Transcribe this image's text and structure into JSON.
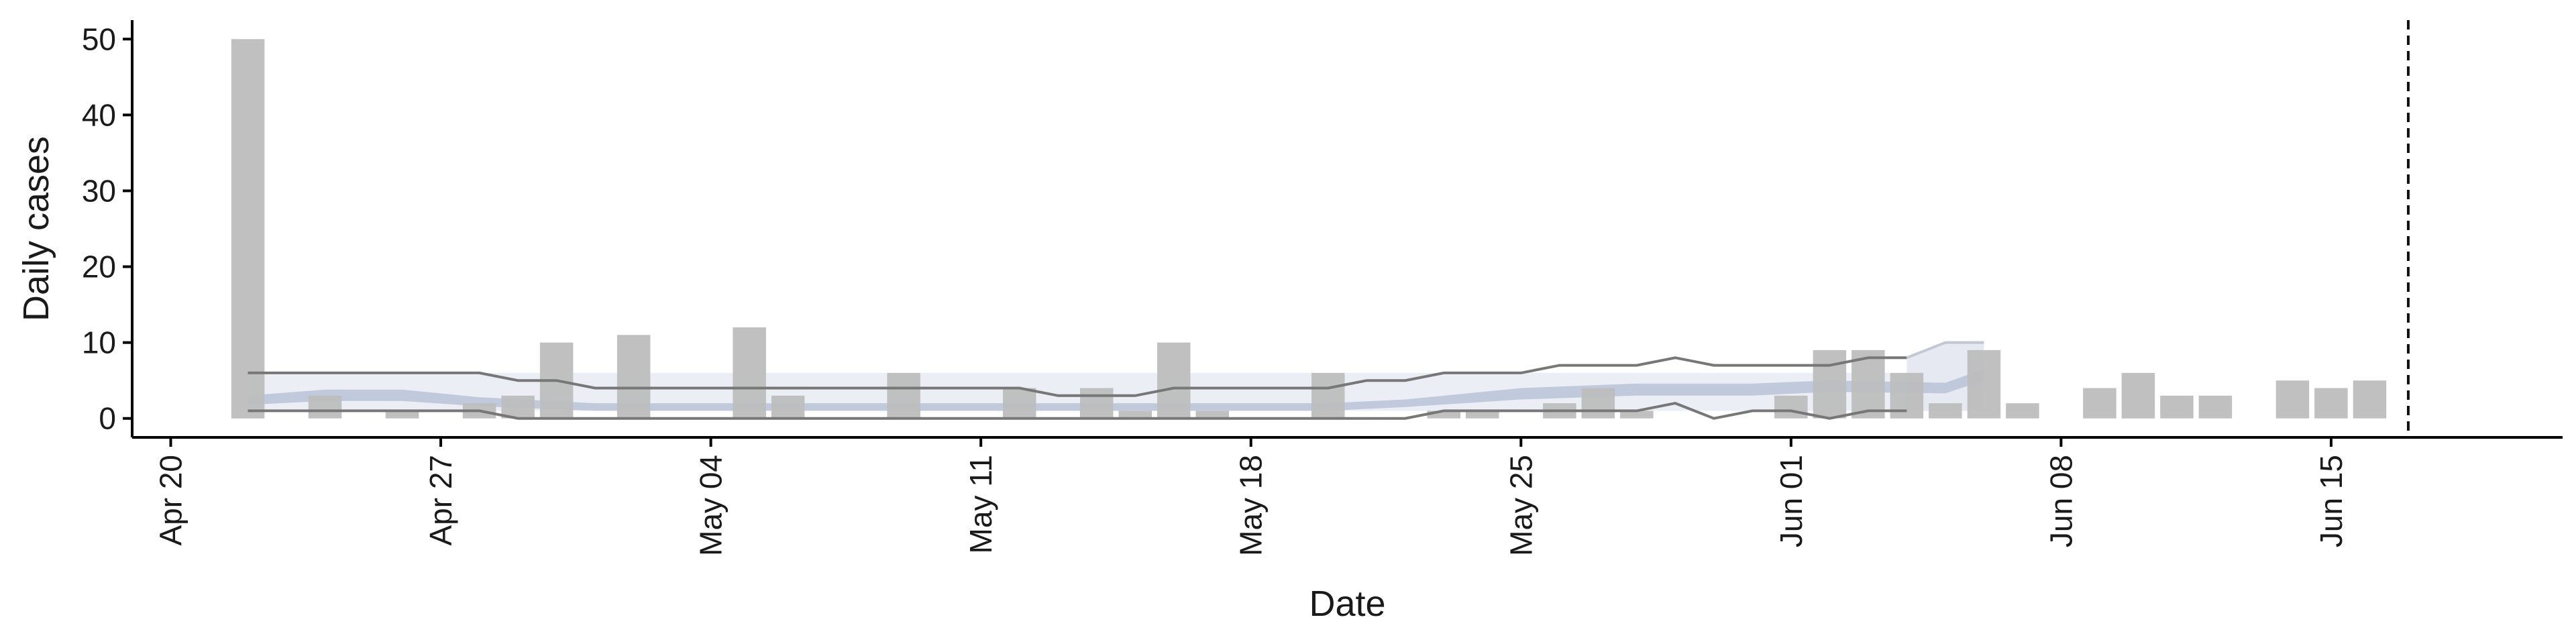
{
  "chart_data": {
    "type": "bar",
    "title": "",
    "xlabel": "Date",
    "ylabel": "Daily cases",
    "ylim": [
      -2.5,
      52.5
    ],
    "yticks": [
      0,
      10,
      20,
      30,
      40,
      50
    ],
    "xlim": [
      "2020-04-19",
      "2020-06-21"
    ],
    "xticks": [
      {
        "date": "2020-04-20",
        "label": "Apr 20"
      },
      {
        "date": "2020-04-27",
        "label": "Apr 27"
      },
      {
        "date": "2020-05-04",
        "label": "May 04"
      },
      {
        "date": "2020-05-11",
        "label": "May 11"
      },
      {
        "date": "2020-05-18",
        "label": "May 18"
      },
      {
        "date": "2020-05-25",
        "label": "May 25"
      },
      {
        "date": "2020-06-01",
        "label": "Jun 01"
      },
      {
        "date": "2020-06-08",
        "label": "Jun 08"
      },
      {
        "date": "2020-06-15",
        "label": "Jun 15"
      }
    ],
    "bars": {
      "color": "#bdbdbd",
      "dates": [
        "2020-04-22",
        "2020-04-24",
        "2020-04-26",
        "2020-04-28",
        "2020-04-29",
        "2020-04-30",
        "2020-05-02",
        "2020-05-05",
        "2020-05-06",
        "2020-05-09",
        "2020-05-12",
        "2020-05-14",
        "2020-05-15",
        "2020-05-16",
        "2020-05-17",
        "2020-05-20",
        "2020-05-23",
        "2020-05-24",
        "2020-05-26",
        "2020-05-27",
        "2020-05-28",
        "2020-06-01",
        "2020-06-02",
        "2020-06-03",
        "2020-06-04",
        "2020-06-05",
        "2020-06-06",
        "2020-06-07",
        "2020-06-09",
        "2020-06-10",
        "2020-06-11",
        "2020-06-12",
        "2020-06-14",
        "2020-06-15",
        "2020-06-16"
      ],
      "values": [
        50,
        3,
        1,
        2,
        3,
        10,
        11,
        12,
        3,
        6,
        4,
        4,
        1,
        10,
        1,
        6,
        1,
        1,
        2,
        4,
        1,
        3,
        9,
        9,
        6,
        2,
        9,
        2,
        4,
        6,
        3,
        3,
        5,
        4,
        5
      ]
    },
    "range_lines": {
      "color": "#777777",
      "dates": [
        "2020-04-22",
        "2020-04-28",
        "2020-04-29",
        "2020-04-30",
        "2020-05-01",
        "2020-05-02",
        "2020-05-12",
        "2020-05-13",
        "2020-05-14",
        "2020-05-15",
        "2020-05-16",
        "2020-05-17",
        "2020-05-20",
        "2020-05-21",
        "2020-05-22",
        "2020-05-23",
        "2020-05-24",
        "2020-05-25",
        "2020-05-26",
        "2020-05-28",
        "2020-05-29",
        "2020-05-30",
        "2020-05-31",
        "2020-06-01",
        "2020-06-02",
        "2020-06-03",
        "2020-06-04"
      ],
      "upper": [
        6,
        6,
        5,
        5,
        4,
        4,
        4,
        3,
        3,
        3,
        4,
        4,
        4,
        5,
        5,
        6,
        6,
        6,
        7,
        7,
        8,
        7,
        7,
        7,
        7,
        8,
        8
      ],
      "lower": [
        1,
        1,
        0,
        0,
        0,
        0,
        0,
        0,
        0,
        0,
        0,
        0,
        0,
        0,
        0,
        1,
        1,
        1,
        1,
        1,
        2,
        0,
        1,
        1,
        0,
        1,
        1
      ]
    },
    "projection_band": {
      "color": "#e6e9f2",
      "dates": [
        "2020-06-04",
        "2020-06-05",
        "2020-06-06"
      ],
      "upper": [
        8,
        10,
        10
      ],
      "lower": [
        1,
        1,
        1
      ]
    },
    "outer_band": {
      "color": "#eceef5",
      "dates": [
        "2020-04-22",
        "2020-05-25",
        "2020-06-06"
      ],
      "upper": [
        6,
        6,
        6
      ],
      "lower": [
        1,
        1,
        1
      ]
    },
    "inner_band": {
      "color": "#b7c0d6",
      "dates": [
        "2020-04-22",
        "2020-04-24",
        "2020-04-26",
        "2020-04-28",
        "2020-05-01",
        "2020-05-05",
        "2020-05-10",
        "2020-05-15",
        "2020-05-20",
        "2020-05-22",
        "2020-05-25",
        "2020-05-28",
        "2020-05-31",
        "2020-06-02",
        "2020-06-05",
        "2020-06-06"
      ],
      "upper": [
        3,
        3.8,
        3.8,
        2.8,
        2,
        2,
        2,
        2,
        2,
        2.5,
        4,
        4.6,
        4.6,
        5,
        4.7,
        6.5
      ],
      "lower": [
        1.8,
        2.3,
        2.3,
        1.6,
        1,
        1,
        1,
        1,
        1,
        1.5,
        2.5,
        3,
        3,
        3.5,
        3.3,
        5
      ]
    },
    "vline": {
      "date": "2020-06-17",
      "style": "dashed",
      "color": "#111111"
    },
    "grid": false
  }
}
